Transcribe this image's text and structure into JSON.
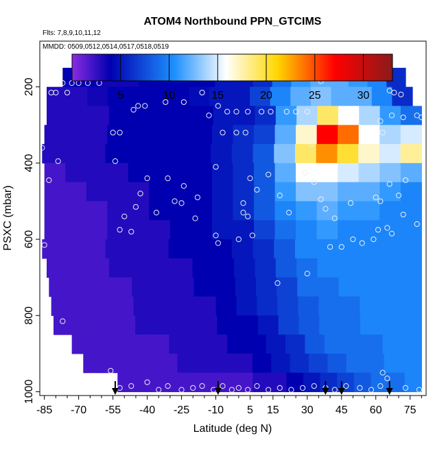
{
  "chart_data": {
    "type": "heatmap",
    "title": "ATOM4 Northbound PPN_GTCIMS",
    "subtitle_lines": [
      "Flts: 7,8,9,10,11,12",
      "MMDD: 0509,0512,0514,0517,0518,0519"
    ],
    "xlabel": "Latitude (deg N)",
    "ylabel": "PSXC (mbar)",
    "xlim": [
      -87,
      82
    ],
    "ylim": [
      1010,
      80
    ],
    "x_ticks": [
      -85,
      -70,
      -55,
      -40,
      -25,
      -10,
      5,
      15,
      30,
      45,
      60,
      75
    ],
    "y_ticks": [
      200,
      400,
      600,
      800,
      1000
    ],
    "colorbar": {
      "range": [
        0,
        33
      ],
      "ticks": [
        5,
        10,
        15,
        20,
        25,
        30
      ],
      "colors": [
        "#8a2be2",
        "#0000b0",
        "#1e90ff",
        "#ffffff",
        "#ffd700",
        "#ff0000",
        "#8b1a1a"
      ]
    },
    "profile_markers_lat": [
      -54,
      -9,
      38,
      45,
      66
    ],
    "heatmap_levels_mbar": [
      200,
      250,
      300,
      350,
      400,
      450,
      500,
      550,
      600,
      650,
      700,
      750,
      800,
      850,
      900,
      950,
      1000
    ],
    "heatmap_values_note": "",
    "heatmap_rows": [
      {
        "p": 175,
        "x0": -77,
        "x1": 73,
        "v": [
          4,
          4,
          3.5,
          3.5,
          4,
          4,
          4,
          4,
          5,
          5,
          6,
          9,
          11,
          12,
          12,
          11,
          10,
          6
        ]
      },
      {
        "p": 225,
        "x0": -84,
        "x1": 76,
        "v": [
          3,
          3,
          3.5,
          4,
          4,
          4,
          4,
          4.5,
          5,
          5,
          7,
          10,
          12,
          13,
          12,
          12,
          10,
          6
        ]
      },
      {
        "p": 275,
        "x0": -84,
        "x1": 80,
        "v": [
          3,
          3,
          3,
          4,
          4,
          4,
          4,
          4,
          5,
          5,
          6,
          11,
          14,
          19,
          16,
          14,
          11,
          9
        ]
      },
      {
        "p": 325,
        "x0": -85,
        "x1": 80,
        "v": [
          3,
          3,
          3,
          4,
          4,
          4,
          4,
          4,
          5,
          6,
          7,
          12,
          17,
          27,
          24,
          16,
          14,
          15
        ]
      },
      {
        "p": 375,
        "x0": -86,
        "x1": 80,
        "v": [
          3,
          3,
          3,
          4,
          4,
          4,
          4,
          4,
          5,
          6,
          8,
          13,
          19,
          23,
          20,
          17,
          15,
          18
        ]
      },
      {
        "p": 425,
        "x0": -85,
        "x1": 80,
        "v": [
          2,
          3,
          3,
          3,
          4,
          4,
          4,
          4,
          5,
          6,
          8,
          12,
          16,
          16,
          15,
          14,
          13,
          12
        ]
      },
      {
        "p": 475,
        "x0": -85,
        "x1": 80,
        "v": [
          2,
          2,
          3,
          3,
          3,
          4,
          4,
          4,
          5,
          6,
          8,
          11,
          13,
          13,
          12,
          12,
          11,
          10
        ]
      },
      {
        "p": 525,
        "x0": -85,
        "x1": 80,
        "v": [
          2,
          2,
          2,
          3,
          3,
          4,
          4,
          4,
          5,
          6,
          8,
          10,
          11,
          12,
          11,
          11,
          10,
          10
        ]
      },
      {
        "p": 575,
        "x0": -85,
        "x1": 80,
        "v": [
          2,
          2,
          2,
          3,
          3,
          3,
          4,
          4,
          5,
          5,
          7,
          9,
          10,
          11,
          10,
          10,
          10,
          10
        ]
      },
      {
        "p": 625,
        "x0": -86,
        "x1": 80,
        "v": [
          2,
          2,
          2,
          3,
          3,
          3,
          4,
          4,
          4,
          5,
          6,
          8,
          10,
          10,
          10,
          10,
          10,
          10
        ]
      },
      {
        "p": 675,
        "x0": -84,
        "x1": 80,
        "v": [
          2,
          2,
          2,
          3,
          3,
          3,
          3,
          4,
          4,
          5,
          6,
          8,
          9,
          10,
          10,
          10,
          10,
          10
        ]
      },
      {
        "p": 725,
        "x0": -83,
        "x1": 80,
        "v": [
          2,
          2,
          2,
          2,
          3,
          3,
          3,
          4,
          4,
          5,
          6,
          7,
          9,
          9,
          10,
          10,
          10,
          10
        ]
      },
      {
        "p": 775,
        "x0": -82,
        "x1": 80,
        "v": [
          2,
          2,
          2,
          2,
          3,
          3,
          3,
          3,
          4,
          5,
          6,
          7,
          8,
          9,
          9,
          10,
          10,
          10
        ]
      },
      {
        "p": 825,
        "x0": -81,
        "x1": 80,
        "v": [
          2,
          2,
          2,
          2,
          3,
          3,
          3,
          3,
          4,
          4,
          5,
          7,
          8,
          9,
          9,
          10,
          10,
          10
        ]
      },
      {
        "p": 875,
        "x0": -73,
        "x1": 80,
        "v": [
          2,
          2,
          2,
          2,
          2,
          3,
          3,
          3,
          4,
          4,
          5,
          6,
          8,
          9,
          9,
          9,
          10,
          10
        ]
      },
      {
        "p": 925,
        "x0": -68,
        "x1": 80,
        "v": [
          2,
          2,
          2,
          2,
          2,
          3,
          3,
          3,
          3,
          4,
          5,
          6,
          7,
          8,
          9,
          9,
          10,
          10
        ]
      },
      {
        "p": 975,
        "x0": -53,
        "x1": 80,
        "v": [
          2,
          2,
          2,
          2,
          2,
          2,
          2,
          2,
          3,
          3,
          4,
          5,
          6,
          7,
          8,
          9,
          9,
          10
        ]
      }
    ],
    "observations": [
      [
        -77,
        190
      ],
      [
        -73,
        190
      ],
      [
        -70,
        190
      ],
      [
        -66,
        190
      ],
      [
        -61,
        190
      ],
      [
        -80,
        215
      ],
      [
        -75,
        215
      ],
      [
        -82,
        215
      ],
      [
        -46,
        260
      ],
      [
        -44,
        250
      ],
      [
        -41,
        250
      ],
      [
        -32,
        240
      ],
      [
        -24,
        240
      ],
      [
        -16,
        215
      ],
      [
        -13,
        275
      ],
      [
        -9,
        250
      ],
      [
        -5,
        265
      ],
      [
        -1,
        265
      ],
      [
        4,
        265
      ],
      [
        10,
        265
      ],
      [
        14,
        265
      ],
      [
        21,
        265
      ],
      [
        25,
        265
      ],
      [
        30,
        265
      ],
      [
        36,
        185
      ],
      [
        66,
        210
      ],
      [
        68,
        215
      ],
      [
        71,
        220
      ],
      [
        78,
        275
      ],
      [
        80,
        280
      ],
      [
        -55,
        320
      ],
      [
        -52,
        320
      ],
      [
        -7,
        320
      ],
      [
        -1,
        320
      ],
      [
        3,
        320
      ],
      [
        32,
        350
      ],
      [
        67,
        275
      ],
      [
        72,
        280
      ],
      [
        62,
        290
      ],
      [
        63,
        320
      ],
      [
        -86,
        360
      ],
      [
        -54,
        395
      ],
      [
        -79,
        395
      ],
      [
        -83,
        445
      ],
      [
        -40,
        440
      ],
      [
        -31,
        440
      ],
      [
        -24,
        460
      ],
      [
        -18,
        490
      ],
      [
        -10,
        410
      ],
      [
        2,
        505
      ],
      [
        5,
        440
      ],
      [
        8,
        470
      ],
      [
        13,
        430
      ],
      [
        18,
        485
      ],
      [
        22,
        530
      ],
      [
        29,
        425
      ],
      [
        36,
        495
      ],
      [
        38,
        520
      ],
      [
        42,
        545
      ],
      [
        49,
        505
      ],
      [
        60,
        490
      ],
      [
        62,
        500
      ],
      [
        66,
        455
      ],
      [
        70,
        485
      ],
      [
        73,
        445
      ],
      [
        65,
        570
      ],
      [
        67,
        585
      ],
      [
        72,
        535
      ],
      [
        78,
        560
      ],
      [
        82,
        540
      ],
      [
        -45,
        515
      ],
      [
        -50,
        540
      ],
      [
        -52,
        575
      ],
      [
        -47,
        580
      ],
      [
        -43,
        480
      ],
      [
        -36,
        530
      ],
      [
        -28,
        500
      ],
      [
        -25,
        505
      ],
      [
        -19,
        545
      ],
      [
        -10,
        590
      ],
      [
        -9,
        610
      ],
      [
        0,
        600
      ],
      [
        2,
        530
      ],
      [
        6,
        590
      ],
      [
        4,
        540
      ],
      [
        40,
        620
      ],
      [
        45,
        620
      ],
      [
        50,
        600
      ],
      [
        54,
        610
      ],
      [
        59,
        600
      ],
      [
        61,
        575
      ],
      [
        -85,
        615
      ],
      [
        -77,
        815
      ],
      [
        -56,
        945
      ],
      [
        -52,
        990
      ],
      [
        -47,
        985
      ],
      [
        -40,
        975
      ],
      [
        -35,
        995
      ],
      [
        -31,
        985
      ],
      [
        -25,
        995
      ],
      [
        -20,
        990
      ],
      [
        -16,
        985
      ],
      [
        -11,
        995
      ],
      [
        -7,
        985
      ],
      [
        -3,
        995
      ],
      [
        0,
        990
      ],
      [
        4,
        995
      ],
      [
        8,
        985
      ],
      [
        13,
        995
      ],
      [
        18,
        990
      ],
      [
        23,
        995
      ],
      [
        28,
        990
      ],
      [
        33,
        985
      ],
      [
        38,
        990
      ],
      [
        42,
        995
      ],
      [
        47,
        985
      ],
      [
        53,
        990
      ],
      [
        58,
        995
      ],
      [
        62,
        985
      ],
      [
        65,
        965
      ],
      [
        63,
        950
      ],
      [
        73,
        990
      ],
      [
        79,
        995
      ],
      [
        30,
        690
      ],
      [
        17,
        715
      ],
      [
        33,
        450
      ]
    ]
  }
}
